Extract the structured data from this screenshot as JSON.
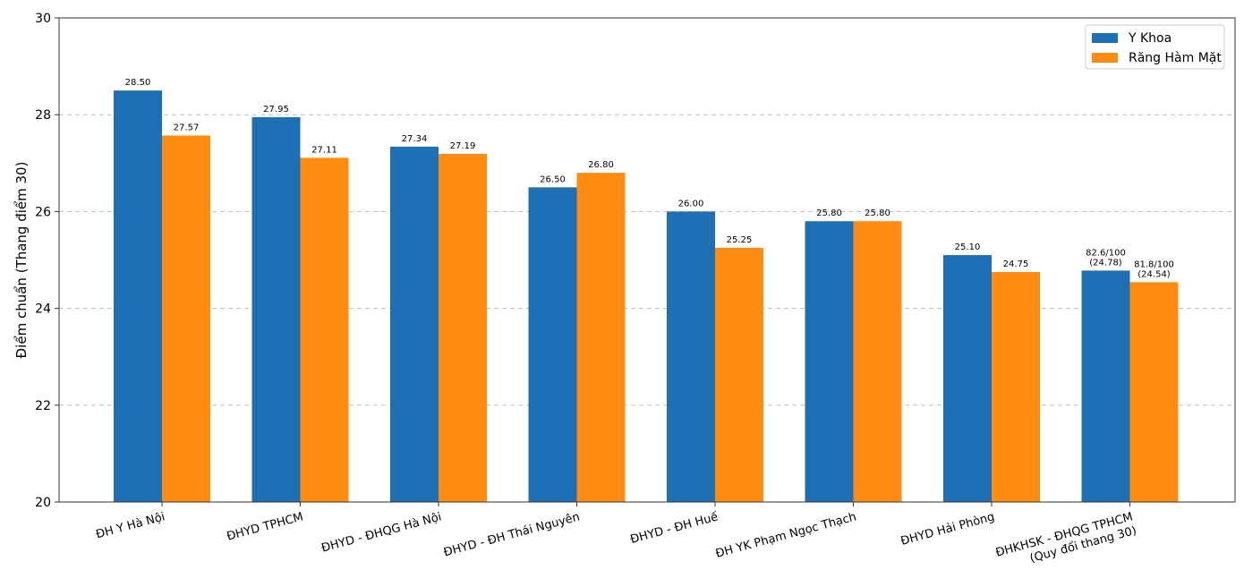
{
  "chart_data": {
    "type": "bar",
    "title": "",
    "xlabel": "",
    "ylabel": "Điểm chuẩn (Thang điểm 30)",
    "ylim": [
      20,
      30
    ],
    "yticks": [
      20,
      22,
      24,
      26,
      28,
      30
    ],
    "grid": "y-dashed",
    "legend_position": "top-right",
    "categories": [
      [
        "ĐH Y Hà Nội"
      ],
      [
        "ĐHYD TPHCM"
      ],
      [
        "ĐHYD - ĐHQG Hà Nội"
      ],
      [
        "ĐHYD - ĐH Thái Nguyên"
      ],
      [
        "ĐHYD - ĐH Huế"
      ],
      [
        "ĐH YK Phạm Ngọc Thạch"
      ],
      [
        "ĐHYD Hải Phòng"
      ],
      [
        "ĐHKHSK - ĐHQG TPHCM",
        "(Quy đổi thang 30)"
      ]
    ],
    "series": [
      {
        "name": "Y Khoa",
        "color": "#1f6fb5",
        "values": [
          28.5,
          27.95,
          27.34,
          26.5,
          26.0,
          25.8,
          25.1,
          24.78
        ],
        "labels": [
          [
            "28.50"
          ],
          [
            "27.95"
          ],
          [
            "27.34"
          ],
          [
            "26.50"
          ],
          [
            "26.00"
          ],
          [
            "25.80"
          ],
          [
            "25.10"
          ],
          [
            "82.6/100",
            "(24.78)"
          ]
        ]
      },
      {
        "name": "Răng Hàm Mặt",
        "color": "#ff8c12",
        "values": [
          27.57,
          27.11,
          27.19,
          26.8,
          25.25,
          25.8,
          24.75,
          24.54
        ],
        "labels": [
          [
            "27.57"
          ],
          [
            "27.11"
          ],
          [
            "27.19"
          ],
          [
            "26.80"
          ],
          [
            "25.25"
          ],
          [
            "25.80"
          ],
          [
            "24.75"
          ],
          [
            "81.8/100",
            "(24.54)"
          ]
        ]
      }
    ]
  }
}
